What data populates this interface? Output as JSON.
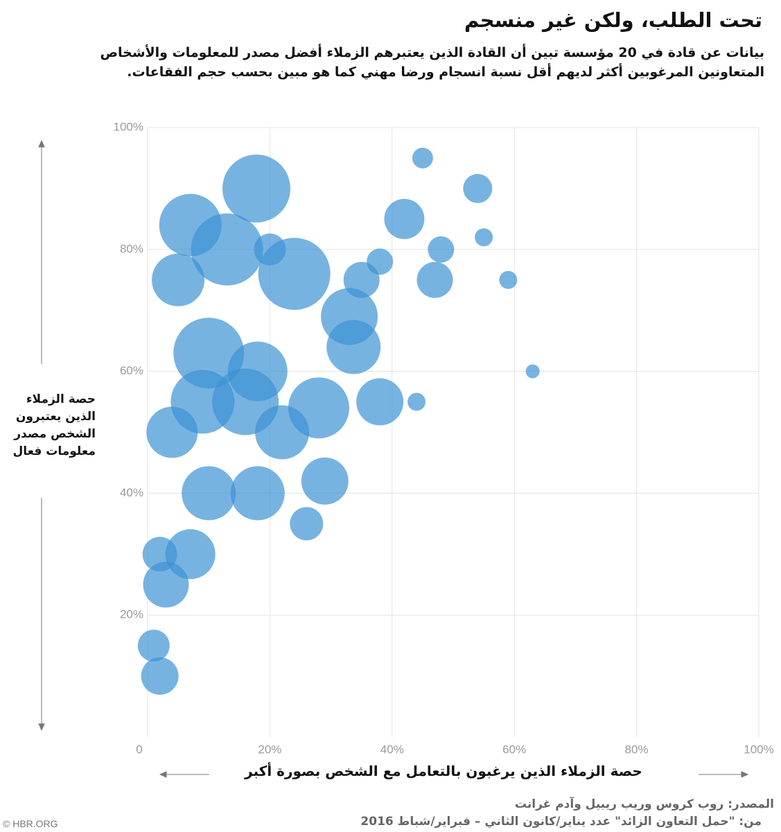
{
  "chart_data": {
    "type": "bubble",
    "title": "تحت الطلب، ولكن غير منسجم",
    "subtitle": "بيانات عن قادة في 20 مؤسسة تبين أن القادة الذين يعتبرهم الزملاء أفضل مصدر للمعلومات والأشخاص المتعاونين المرغوبين أكثر لديهم أقل نسبة انسجام ورضا مهني كما هو مبين بحسب حجم الفقاعات.",
    "x_label": "حصة الزملاء الذين يرغبون بالتعامل مع الشخص بصورة أكبر",
    "y_label": "حصة الزملاء الذين يعتبرون الشخص مصدر معلومات فعال",
    "source": "المصدر: روب كروس وريب ريبيل وآدم غرانت",
    "source_detail": "من: \"حمل التعاون الزائد\" عدد يناير/كانون الثاني – فبراير/شباط 2016",
    "credit": "© HBR.ORG",
    "color": "#3d93d4",
    "grid": true,
    "xlim": [
      0,
      100
    ],
    "ylim": [
      0,
      100
    ],
    "xticks": [
      0,
      {
        "value": 20,
        "label": "20%"
      },
      {
        "value": 40,
        "label": "40%"
      },
      {
        "value": 60,
        "label": "60%"
      },
      {
        "value": 80,
        "label": "80%"
      },
      {
        "value": 100,
        "label": "100%"
      }
    ],
    "yticks": [
      {
        "value": 20,
        "label": "20%"
      },
      {
        "value": 40,
        "label": "40%"
      },
      {
        "value": 60,
        "label": "60%"
      },
      {
        "value": 80,
        "label": "80%"
      },
      {
        "value": 100,
        "label": "100%"
      }
    ],
    "x": [
      45,
      54,
      17.8,
      42,
      7,
      55,
      13,
      20,
      48,
      38,
      24,
      5,
      35,
      47,
      59,
      33,
      33.7,
      10,
      18,
      63,
      9,
      16,
      28,
      38,
      44,
      4,
      22,
      29,
      10,
      18,
      26,
      2,
      7,
      3,
      1,
      2
    ],
    "values": [
      95,
      90,
      90,
      85,
      84,
      82,
      80,
      80,
      80,
      78,
      76,
      75,
      75,
      75,
      75,
      69,
      64,
      63,
      60,
      60,
      55,
      55,
      54,
      55,
      55,
      50,
      50,
      42,
      40,
      40,
      35,
      30,
      30,
      25,
      15,
      10
    ],
    "sizes": [
      15,
      21,
      49,
      29,
      45,
      13,
      52,
      23,
      19,
      19,
      52,
      38,
      26,
      26,
      13,
      41,
      39,
      51,
      43,
      10,
      46,
      48,
      44,
      34,
      13,
      37,
      39,
      34,
      39,
      39,
      24,
      25,
      36,
      33,
      23,
      27
    ]
  }
}
